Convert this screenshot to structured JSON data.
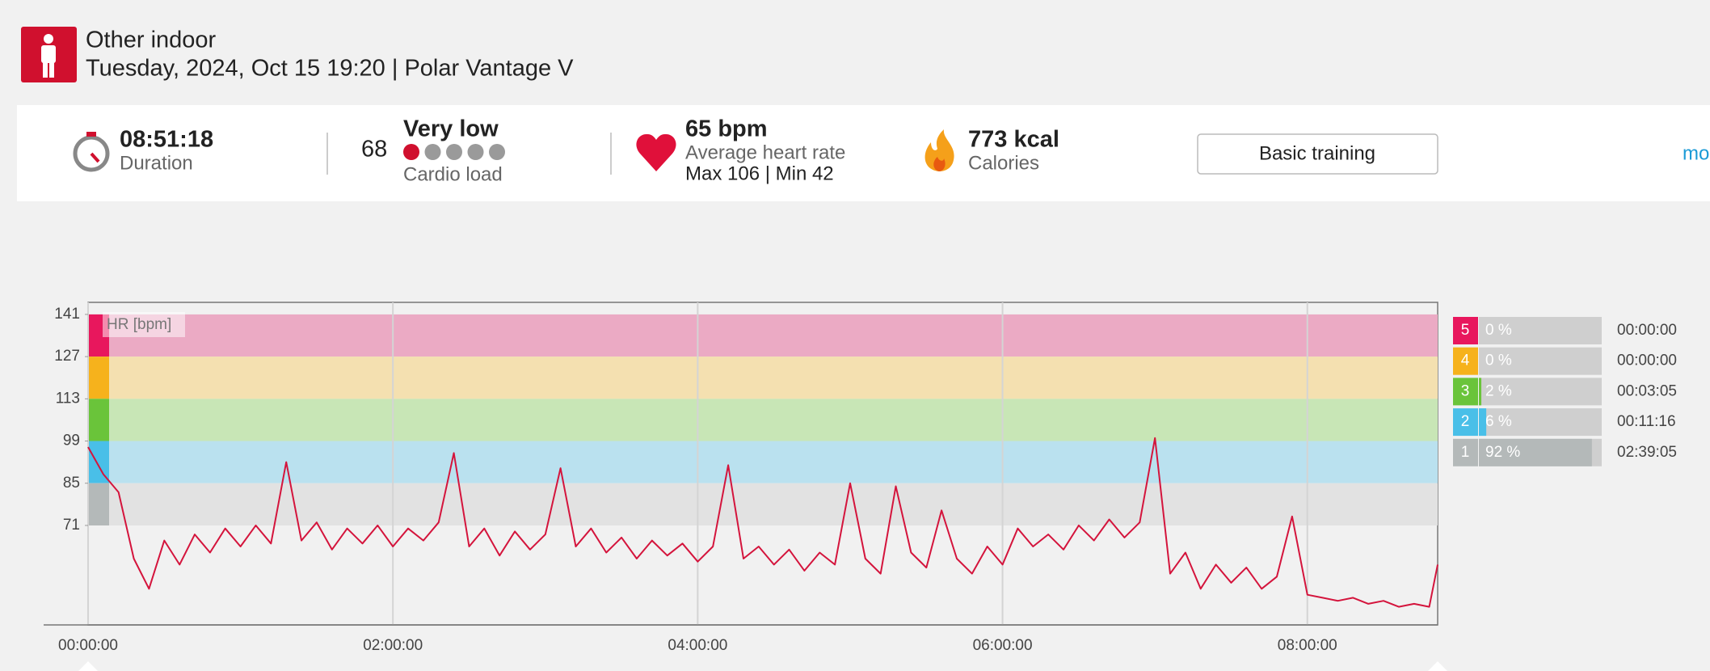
{
  "header": {
    "title": "Other indoor",
    "subtitle": "Tuesday, 2024, Oct 15 19:20 | Polar Vantage V"
  },
  "summary": {
    "duration": {
      "value": "08:51:18",
      "label": "Duration"
    },
    "cardio_load": {
      "score": 68,
      "level": "Very low",
      "dots_filled": 1,
      "dots_total": 5,
      "label": "Cardio load"
    },
    "heart_rate": {
      "average": "65 bpm",
      "label": "Average heart rate",
      "range": "Max 106  |  Min 42"
    },
    "calories": {
      "value": "773 kcal",
      "label": "Calories"
    },
    "button": "Basic training",
    "more": "mo"
  },
  "chart_data": {
    "type": "line",
    "y_label": "HR [bpm]",
    "color": "#d4143c",
    "x": [
      0,
      0.1,
      0.2,
      0.3,
      0.4,
      0.5,
      0.6,
      0.7,
      0.8,
      0.9,
      1.0,
      1.1,
      1.2,
      1.3,
      1.4,
      1.5,
      1.6,
      1.7,
      1.8,
      1.9,
      2.0,
      2.1,
      2.2,
      2.3,
      2.4,
      2.5,
      2.6,
      2.7,
      2.8,
      2.9,
      3.0,
      3.1,
      3.2,
      3.3,
      3.4,
      3.5,
      3.6,
      3.7,
      3.8,
      3.9,
      4.0,
      4.1,
      4.2,
      4.3,
      4.4,
      4.5,
      4.6,
      4.7,
      4.8,
      4.9,
      5.0,
      5.1,
      5.2,
      5.3,
      5.4,
      5.5,
      5.6,
      5.7,
      5.8,
      5.9,
      6.0,
      6.1,
      6.2,
      6.3,
      6.4,
      6.5,
      6.6,
      6.7,
      6.8,
      6.9,
      7.0,
      7.1,
      7.2,
      7.3,
      7.4,
      7.5,
      7.6,
      7.7,
      7.8,
      7.9,
      8.0,
      8.1,
      8.2,
      8.3,
      8.4,
      8.5,
      8.6,
      8.7,
      8.8,
      8.855
    ],
    "values": [
      97,
      88,
      82,
      60,
      50,
      66,
      58,
      68,
      62,
      70,
      64,
      71,
      65,
      92,
      66,
      72,
      63,
      70,
      65,
      71,
      64,
      70,
      66,
      72,
      95,
      64,
      70,
      61,
      69,
      63,
      68,
      90,
      64,
      70,
      62,
      67,
      60,
      66,
      61,
      65,
      59,
      64,
      91,
      60,
      64,
      58,
      63,
      56,
      62,
      58,
      85,
      60,
      55,
      84,
      62,
      57,
      76,
      60,
      55,
      64,
      58,
      70,
      64,
      68,
      63,
      71,
      66,
      73,
      67,
      72,
      100,
      55,
      62,
      50,
      58,
      52,
      57,
      50,
      54,
      74,
      48,
      47,
      46,
      47,
      45,
      46,
      44,
      45,
      44,
      58
    ],
    "xlim": [
      0,
      8.855
    ],
    "ylim": [
      38,
      145
    ],
    "xticks": [
      {
        "value": 0,
        "label": "00:00:00"
      },
      {
        "value": 2,
        "label": "02:00:00"
      },
      {
        "value": 4,
        "label": "04:00:00"
      },
      {
        "value": 6,
        "label": "06:00:00"
      },
      {
        "value": 8,
        "label": "08:00:00"
      }
    ],
    "yticks": [
      71,
      85,
      99,
      113,
      127,
      141
    ],
    "zones": [
      {
        "label": "5",
        "lower": 127,
        "upper": 141,
        "color": "#e8175d",
        "band_color": "#ebaac4",
        "percent": 0,
        "percent_label": "0 %",
        "time": "00:00:00"
      },
      {
        "label": "4",
        "lower": 113,
        "upper": 127,
        "color": "#f6b21c",
        "band_color": "#f4e0b0",
        "percent": 0,
        "percent_label": "0 %",
        "time": "00:00:00"
      },
      {
        "label": "3",
        "lower": 99,
        "upper": 113,
        "color": "#6ac43a",
        "band_color": "#c8e6b6",
        "percent": 2,
        "percent_label": "2 %",
        "time": "00:03:05"
      },
      {
        "label": "2",
        "lower": 85,
        "upper": 99,
        "color": "#49bfe8",
        "band_color": "#bae1ef",
        "percent": 6,
        "percent_label": "6 %",
        "time": "00:11:16"
      },
      {
        "label": "1",
        "lower": 71,
        "upper": 85,
        "color": "#b4b9b9",
        "band_color": "#e2e2e2",
        "percent": 92,
        "percent_label": "92 %",
        "time": "02:39:05"
      }
    ]
  }
}
